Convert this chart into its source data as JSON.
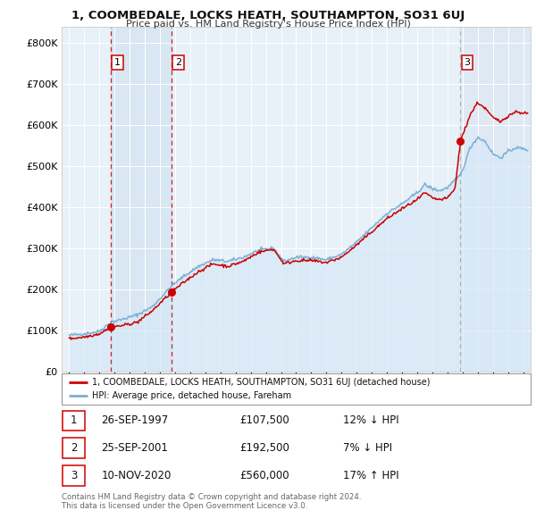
{
  "title": "1, COOMBEDALE, LOCKS HEATH, SOUTHAMPTON, SO31 6UJ",
  "subtitle": "Price paid vs. HM Land Registry's House Price Index (HPI)",
  "sale_label": "1, COOMBEDALE, LOCKS HEATH, SOUTHAMPTON, SO31 6UJ (detached house)",
  "hpi_label": "HPI: Average price, detached house, Fareham",
  "sale_color": "#cc0000",
  "hpi_color": "#7ab0d4",
  "hpi_fill_color": "#d6e8f7",
  "background_color": "#ffffff",
  "plot_bg_color": "#e8f0f8",
  "grid_color": "#ffffff",
  "sales": [
    {
      "num": 1,
      "date_x": 1997.74,
      "price": 107500,
      "label_date": "26-SEP-1997",
      "label_price": "£107,500",
      "label_pct": "12% ↓ HPI"
    },
    {
      "num": 2,
      "date_x": 2001.74,
      "price": 192500,
      "label_date": "25-SEP-2001",
      "label_price": "£192,500",
      "label_pct": "7% ↓ HPI"
    },
    {
      "num": 3,
      "date_x": 2020.86,
      "price": 560000,
      "label_date": "10-NOV-2020",
      "label_price": "£560,000",
      "label_pct": "17% ↑ HPI"
    }
  ],
  "ylim": [
    0,
    840000
  ],
  "xlim": [
    1994.5,
    2025.5
  ],
  "yticks": [
    0,
    100000,
    200000,
    300000,
    400000,
    500000,
    600000,
    700000,
    800000
  ],
  "ytick_labels": [
    "£0",
    "£100K",
    "£200K",
    "£300K",
    "£400K",
    "£500K",
    "£600K",
    "£700K",
    "£800K"
  ],
  "footer": "Contains HM Land Registry data © Crown copyright and database right 2024.\nThis data is licensed under the Open Government Licence v3.0."
}
